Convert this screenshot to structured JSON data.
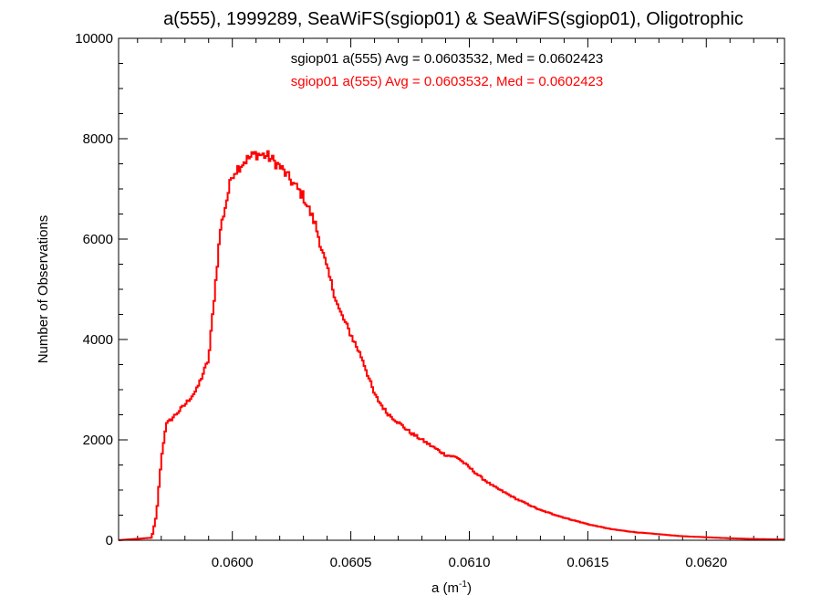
{
  "chart_data": {
    "type": "histogram",
    "title": "a(555), 1999289, SeaWiFS(sgiop01) & SeaWiFS(sgiop01), Oligotrophic",
    "xlabel_base": "a (m",
    "xlabel_sup": "-1",
    "xlabel_close": ")",
    "ylabel": "Number of Observations",
    "xlim": [
      0.05952,
      0.06233
    ],
    "ylim": [
      0,
      10000
    ],
    "x_ticks": [
      0.06,
      0.0605,
      0.061,
      0.0615,
      0.062
    ],
    "x_tick_labels": [
      "0.0600",
      "0.0605",
      "0.0610",
      "0.0615",
      "0.0620"
    ],
    "y_ticks": [
      0,
      2000,
      4000,
      6000,
      8000,
      10000
    ],
    "y_tick_labels": [
      "0",
      "2000",
      "4000",
      "6000",
      "8000",
      "10000"
    ],
    "x_minor_step": 0.0001,
    "y_minor_step": 500,
    "legend": [
      {
        "text": "sgiop01 a(555) Avg = 0.0603532, Med = 0.0602423",
        "color": "#000000"
      },
      {
        "text": "sgiop01 a(555) Avg = 0.0603532, Med = 0.0602423",
        "color": "#ff0000"
      }
    ],
    "series": [
      {
        "color": "#ff0000",
        "profile_x": [
          0.05952,
          0.05966,
          0.05968,
          0.0597,
          0.05972,
          0.05976,
          0.0598,
          0.05985,
          0.0599,
          0.05995,
          0.06,
          0.06005,
          0.0601,
          0.06015,
          0.0602,
          0.06025,
          0.0603,
          0.06035,
          0.0604,
          0.06045,
          0.0605,
          0.06055,
          0.0606,
          0.06065,
          0.0607,
          0.06075,
          0.0608,
          0.06085,
          0.0609,
          0.06095,
          0.061,
          0.06105,
          0.0611,
          0.0612,
          0.0613,
          0.0614,
          0.0615,
          0.0616,
          0.0617,
          0.0618,
          0.0619,
          0.062,
          0.0621,
          0.0622,
          0.06233
        ],
        "profile_y": [
          0,
          50,
          500,
          1600,
          2300,
          2500,
          2700,
          3000,
          3600,
          6200,
          7300,
          7550,
          7700,
          7650,
          7450,
          7150,
          6850,
          6300,
          5400,
          4600,
          4100,
          3600,
          2900,
          2550,
          2350,
          2150,
          2000,
          1850,
          1700,
          1650,
          1450,
          1250,
          1080,
          820,
          600,
          450,
          320,
          220,
          160,
          120,
          80,
          60,
          40,
          25,
          15
        ],
        "bin_width": 6.67e-06
      }
    ]
  }
}
